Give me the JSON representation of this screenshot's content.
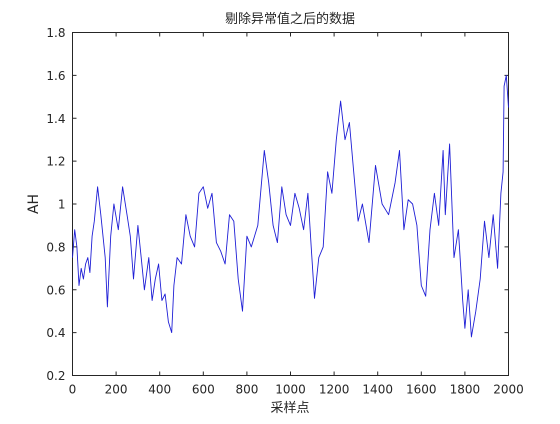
{
  "chart_data": {
    "type": "line",
    "title": "剔除异常值之后的数据",
    "xlabel": "采样点",
    "ylabel": "AH",
    "xlim": [
      0,
      2000
    ],
    "ylim": [
      0.2,
      1.8
    ],
    "xticks": [
      0,
      200,
      400,
      600,
      800,
      1000,
      1200,
      1400,
      1600,
      1800,
      2000
    ],
    "yticks": [
      0.2,
      0.4,
      0.6,
      0.8,
      1.0,
      1.2,
      1.4,
      1.6,
      1.8
    ],
    "xtick_labels": [
      "0",
      "200",
      "400",
      "600",
      "800",
      "1000",
      "1200",
      "1400",
      "1600",
      "1800",
      "2000"
    ],
    "ytick_labels": [
      "0.2",
      "0.4",
      "0.6",
      "0.8",
      "1",
      "1.2",
      "1.4",
      "1.6",
      "1.8"
    ],
    "grid": false,
    "colors": {
      "line": "#1f1fd6",
      "axes": "#262626"
    },
    "series": [
      {
        "x": [
          0,
          10,
          20,
          30,
          40,
          50,
          60,
          70,
          80,
          90,
          100,
          115,
          130,
          150,
          160,
          175,
          190,
          210,
          230,
          250,
          265,
          280,
          300,
          315,
          330,
          350,
          365,
          380,
          395,
          410,
          425,
          440,
          455,
          465,
          480,
          500,
          520,
          540,
          560,
          580,
          600,
          620,
          640,
          660,
          680,
          700,
          720,
          740,
          760,
          780,
          800,
          820,
          850,
          880,
          900,
          920,
          940,
          960,
          980,
          1000,
          1020,
          1040,
          1060,
          1080,
          1095,
          1110,
          1130,
          1150,
          1170,
          1190,
          1210,
          1230,
          1250,
          1270,
          1290,
          1310,
          1330,
          1360,
          1390,
          1420,
          1450,
          1480,
          1500,
          1520,
          1540,
          1560,
          1580,
          1600,
          1620,
          1640,
          1660,
          1680,
          1700,
          1710,
          1730,
          1750,
          1770,
          1790,
          1800,
          1815,
          1830,
          1850,
          1870,
          1890,
          1910,
          1930,
          1950,
          1965,
          1975,
          1980,
          1990,
          2000
        ],
        "y": [
          0.75,
          0.88,
          0.8,
          0.62,
          0.7,
          0.65,
          0.72,
          0.75,
          0.68,
          0.85,
          0.92,
          1.08,
          0.95,
          0.75,
          0.52,
          0.85,
          1.0,
          0.88,
          1.08,
          0.95,
          0.85,
          0.65,
          0.9,
          0.75,
          0.6,
          0.75,
          0.55,
          0.65,
          0.72,
          0.55,
          0.58,
          0.45,
          0.4,
          0.62,
          0.75,
          0.72,
          0.95,
          0.85,
          0.8,
          1.05,
          1.08,
          0.98,
          1.05,
          0.82,
          0.78,
          0.72,
          0.95,
          0.92,
          0.65,
          0.5,
          0.85,
          0.8,
          0.9,
          1.25,
          1.1,
          0.9,
          0.82,
          1.08,
          0.95,
          0.9,
          1.05,
          0.98,
          0.88,
          1.05,
          0.8,
          0.56,
          0.75,
          0.8,
          1.15,
          1.05,
          1.3,
          1.48,
          1.3,
          1.38,
          1.15,
          0.92,
          1.0,
          0.82,
          1.18,
          1.0,
          0.95,
          1.1,
          1.25,
          0.88,
          1.02,
          1.0,
          0.9,
          0.62,
          0.57,
          0.88,
          1.05,
          0.9,
          1.25,
          0.95,
          1.28,
          0.75,
          0.88,
          0.55,
          0.42,
          0.6,
          0.38,
          0.5,
          0.65,
          0.92,
          0.75,
          0.95,
          0.7,
          1.05,
          1.15,
          1.55,
          1.6,
          1.45
        ]
      }
    ]
  }
}
